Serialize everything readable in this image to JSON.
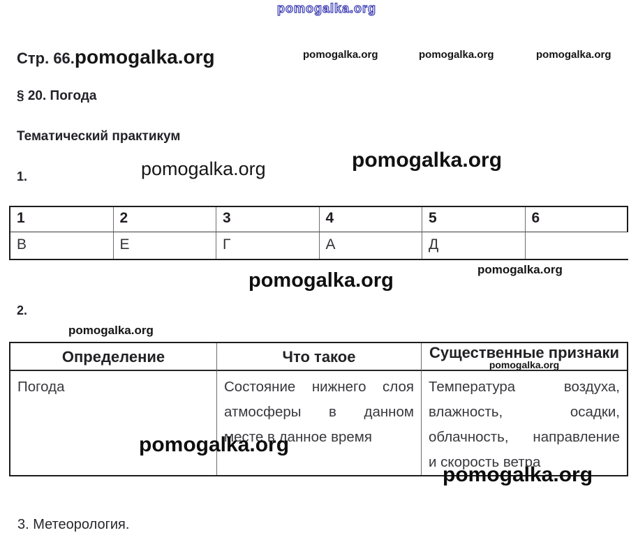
{
  "page": {
    "header": {
      "page_label": "Стр. 66."
    },
    "title": "§ 20. Погода",
    "subtitle": "Тематический практикум",
    "item1_label": "1.",
    "item2_label": "2.",
    "item3_label": "3. Метеорология."
  },
  "watermarks": {
    "top_outline": "pomogalka.org",
    "header_inline": "pomogalka.org",
    "top_row": [
      "pomogalka.org",
      "pomogalka.org",
      "pomogalka.org"
    ],
    "mid_left": "pomogalka.org",
    "mid_right": "pomogalka.org",
    "below_table1_small": "pomogalka.org",
    "below_table1_large": "pomogalka.org",
    "above_table2": "pomogalka.org",
    "table2_header": "pomogalka.org",
    "table2_inside": "pomogalka.org",
    "bottom_right": "pomogalka.org"
  },
  "table1": {
    "headers": [
      "1",
      "2",
      "3",
      "4",
      "5",
      "6"
    ],
    "answers": [
      "В",
      "Е",
      "Г",
      "А",
      "Д",
      ""
    ]
  },
  "table2": {
    "headers": [
      "Определение",
      "Что такое",
      "Существенные признаки"
    ],
    "rows": [
      {
        "definition": "Погода",
        "what_lines": [
          "Состояние нижнего слоя",
          "атмосферы в данном",
          "месте в данное время"
        ],
        "features_lines": [
          "Температура воздуха,",
          "влажность, осадки,",
          "облачность, направление",
          "и скорость ветра"
        ]
      }
    ]
  }
}
